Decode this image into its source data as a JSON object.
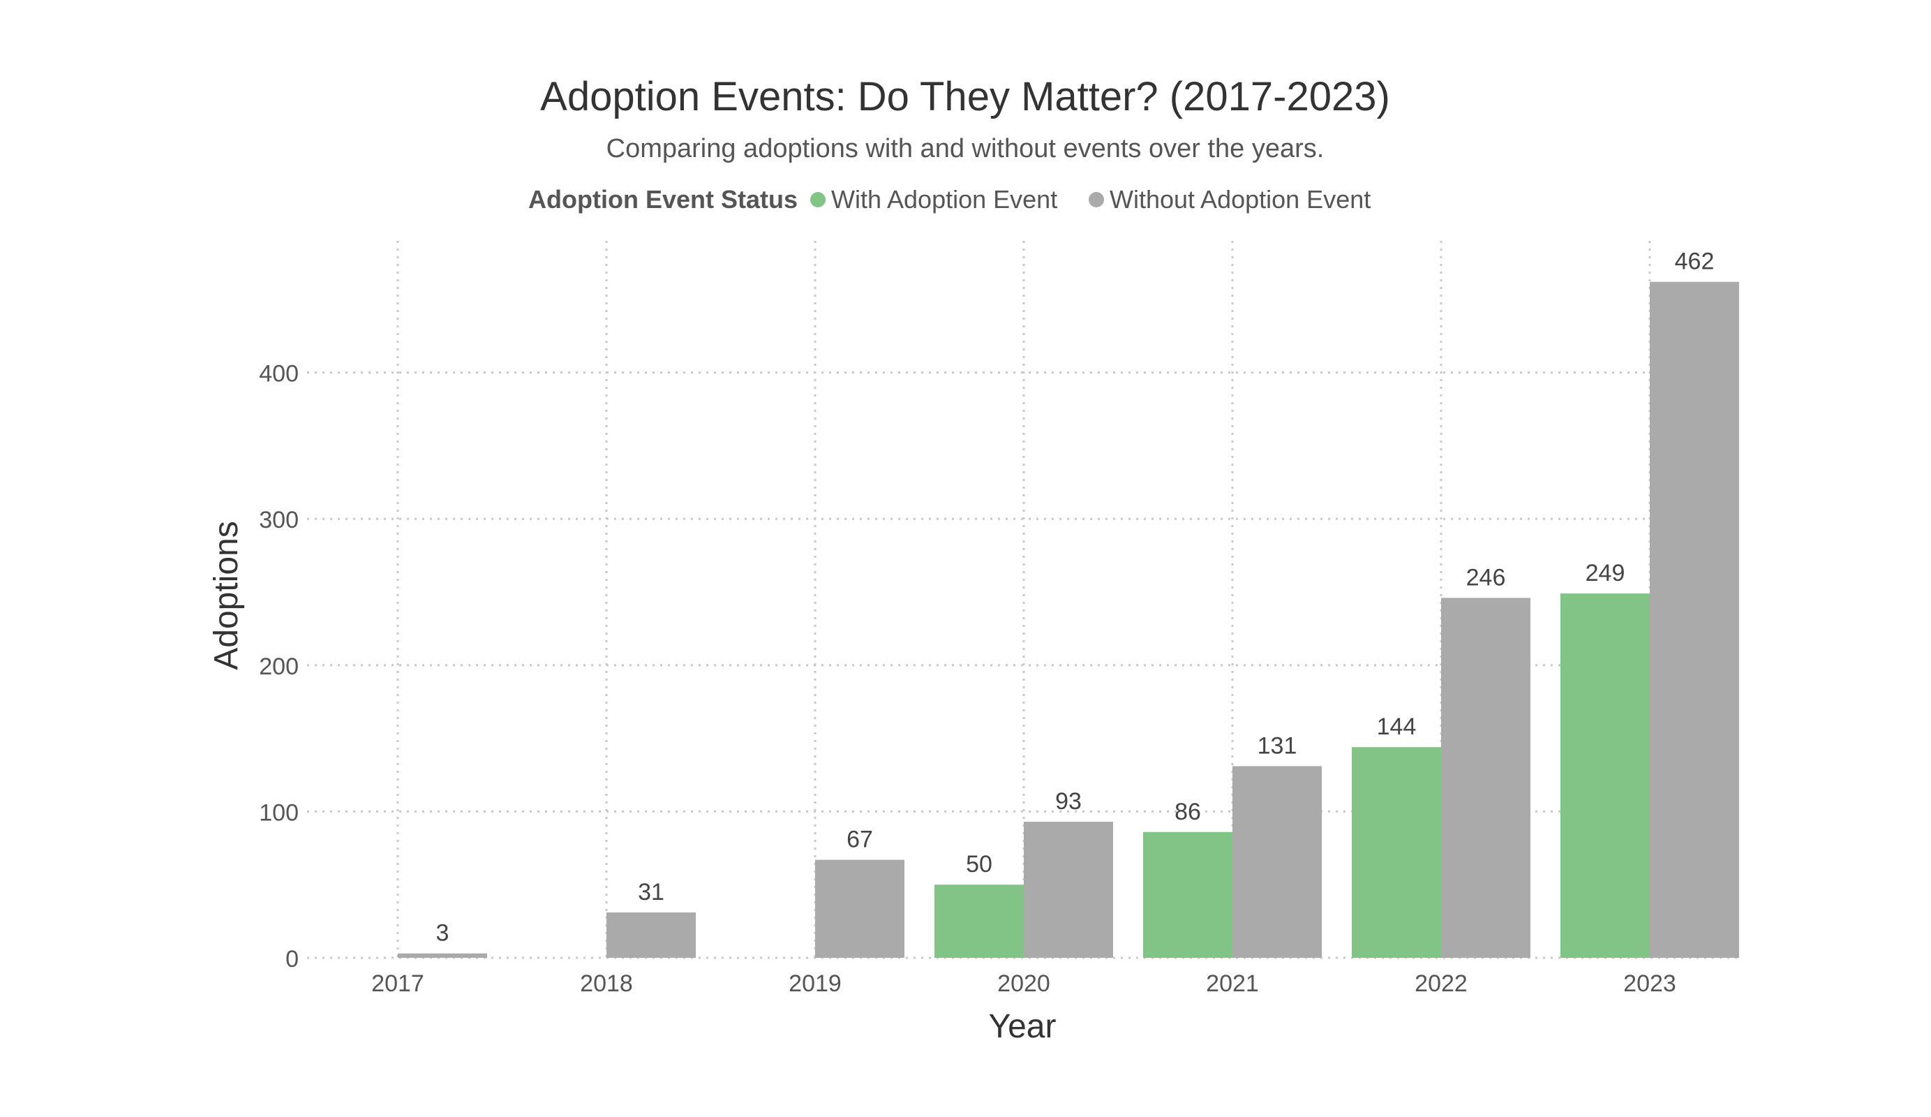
{
  "chart_data": {
    "type": "bar",
    "title": "Adoption Events: Do They Matter? (2017-2023)",
    "subtitle": "Comparing adoptions with and without events over the years.",
    "xlabel": "Year",
    "ylabel": "Adoptions",
    "categories": [
      "2017",
      "2018",
      "2019",
      "2020",
      "2021",
      "2022",
      "2023"
    ],
    "series": [
      {
        "name": "With Adoption Event",
        "color": "#82c486",
        "values": [
          null,
          null,
          null,
          50,
          86,
          144,
          249
        ]
      },
      {
        "name": "Without Adoption Event",
        "color": "#aaaaaa",
        "values": [
          3,
          31,
          67,
          93,
          131,
          246,
          462
        ]
      }
    ],
    "legend": {
      "title": "Adoption Event Status",
      "placement": "top-center"
    },
    "ylim": [
      0,
      490
    ],
    "yticks": [
      0,
      100,
      200,
      300,
      400
    ],
    "grid": true,
    "data_labels": true
  }
}
